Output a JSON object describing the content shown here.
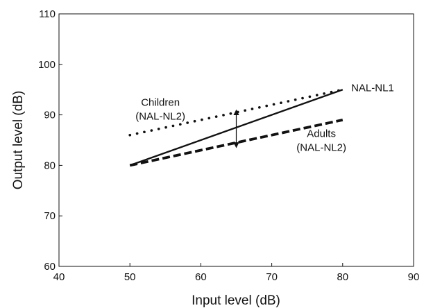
{
  "chart_data": {
    "type": "line",
    "title": "",
    "xlabel": "Input level (dB)",
    "ylabel": "Output level (dB)",
    "xlim": [
      40,
      90
    ],
    "ylim": [
      60,
      110
    ],
    "xticks": [
      40,
      50,
      60,
      70,
      80,
      90
    ],
    "yticks": [
      60,
      70,
      80,
      90,
      100,
      110
    ],
    "grid": false,
    "legend": "none",
    "series": [
      {
        "name": "NAL-NL1",
        "style": "solid",
        "color": "#111111",
        "x": [
          50,
          80
        ],
        "y": [
          80,
          95
        ]
      },
      {
        "name": "Children (NAL-NL2)",
        "style": "dotted",
        "color": "#111111",
        "x": [
          50,
          80
        ],
        "y": [
          86,
          95
        ]
      },
      {
        "name": "Adults (NAL-NL2)",
        "style": "dashed",
        "color": "#111111",
        "x": [
          50,
          80
        ],
        "y": [
          80,
          89
        ]
      }
    ],
    "annotations": [
      {
        "lines": [
          "NAL-NL1"
        ],
        "x": 81.2,
        "y": 94.7,
        "anchor": "start"
      },
      {
        "lines": [
          "Children",
          "(NAL-NL2)"
        ],
        "x": 54.3,
        "y": 91.8,
        "anchor": "middle"
      },
      {
        "lines": [
          "Adults",
          "(NAL-NL2)"
        ],
        "x": 77,
        "y": 85.6,
        "anchor": "middle"
      }
    ],
    "arrow": {
      "x": 65,
      "y_from": 84,
      "y_to": 90.5
    }
  }
}
